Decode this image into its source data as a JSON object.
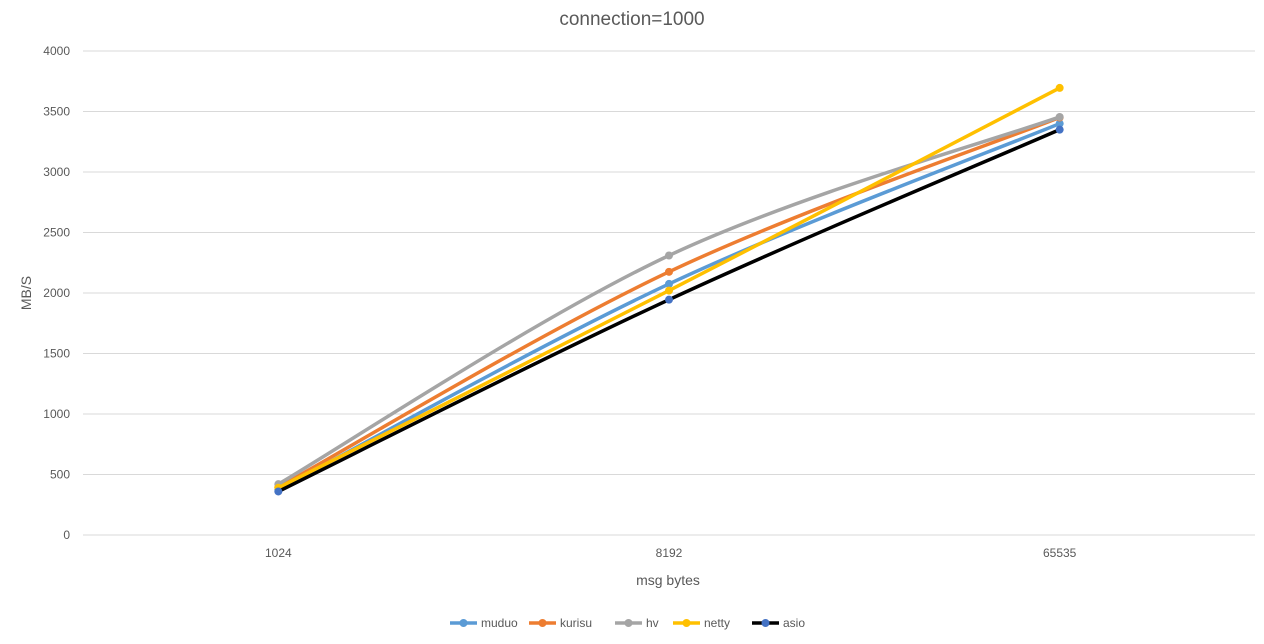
{
  "chart_data": {
    "type": "line",
    "title": "connection=1000",
    "xlabel": "msg bytes",
    "ylabel": "MB/S",
    "categories": [
      "1024",
      "8192",
      "65535"
    ],
    "ylim": [
      0,
      4000
    ],
    "yticks": [
      0,
      500,
      1000,
      1500,
      2000,
      2500,
      3000,
      3500,
      4000
    ],
    "grid": true,
    "smooth": true,
    "legend_position": "bottom",
    "series": [
      {
        "name": "muduo",
        "color": "#5b9bd5",
        "values": [
          375,
          2075,
          3400
        ]
      },
      {
        "name": "kurisu",
        "color": "#ed7d31",
        "values": [
          395,
          2175,
          3450
        ]
      },
      {
        "name": "hv",
        "color": "#a5a5a5",
        "values": [
          420,
          2310,
          3455
        ]
      },
      {
        "name": "netty",
        "color": "#ffc000",
        "values": [
          390,
          2020,
          3695
        ]
      },
      {
        "name": "asio",
        "color": "#000000",
        "marker_color": "#4472c4",
        "values": [
          360,
          1945,
          3350
        ]
      }
    ]
  }
}
